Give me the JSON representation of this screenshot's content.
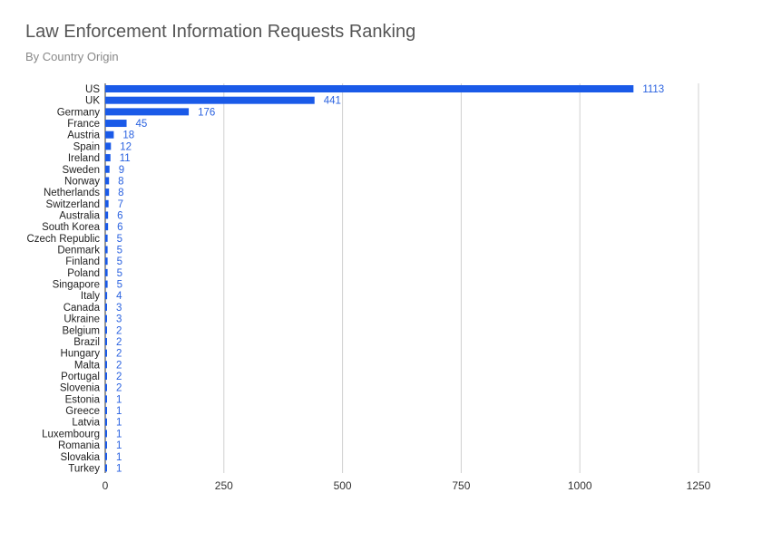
{
  "chart_data": {
    "type": "bar",
    "orientation": "horizontal",
    "title": "Law Enforcement Information Requests Ranking",
    "subtitle": "By Country Origin",
    "xlabel": "",
    "ylabel": "",
    "xlim": [
      0,
      1250
    ],
    "xticks": [
      0,
      250,
      500,
      750,
      1000,
      1250
    ],
    "grid": true,
    "legend": "none",
    "bar_color": "#1a5ae8",
    "label_color": "#2a62e0",
    "categories": [
      "US",
      "UK",
      "Germany",
      "France",
      "Austria",
      "Spain",
      "Ireland",
      "Sweden",
      "Norway",
      "Netherlands",
      "Switzerland",
      "Australia",
      "South Korea",
      "Czech Republic",
      "Denmark",
      "Finland",
      "Poland",
      "Singapore",
      "Italy",
      "Canada",
      "Ukraine",
      "Belgium",
      "Brazil",
      "Hungary",
      "Malta",
      "Portugal",
      "Slovenia",
      "Estonia",
      "Greece",
      "Latvia",
      "Luxembourg",
      "Romania",
      "Slovakia",
      "Turkey"
    ],
    "values": [
      1113,
      441,
      176,
      45,
      18,
      12,
      11,
      9,
      8,
      8,
      7,
      6,
      6,
      5,
      5,
      5,
      5,
      5,
      4,
      3,
      3,
      2,
      2,
      2,
      2,
      2,
      2,
      1,
      1,
      1,
      1,
      1,
      1,
      1
    ]
  }
}
